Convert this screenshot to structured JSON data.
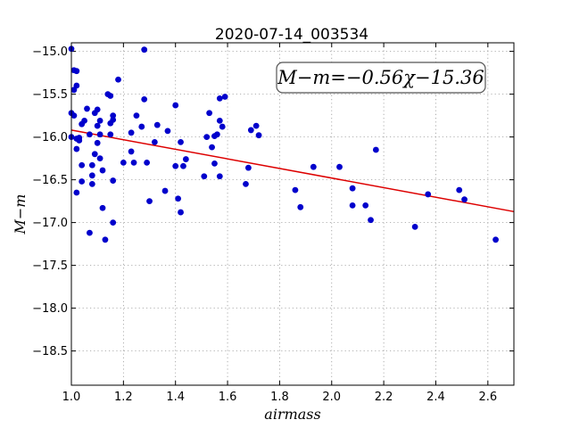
{
  "chart_data": {
    "type": "scatter",
    "title": "2020-07-14_003534",
    "xlabel": "airmass",
    "ylabel": "M−m",
    "xlim": [
      1.0,
      2.7
    ],
    "ylim": [
      -18.9,
      -14.9
    ],
    "y_inverted": true,
    "grid": true,
    "xticks": [
      1.0,
      1.2,
      1.4,
      1.6,
      1.8,
      2.0,
      2.2,
      2.4,
      2.6
    ],
    "xtick_labels": [
      "1.0",
      "1.2",
      "1.4",
      "1.6",
      "1.8",
      "2.0",
      "2.2",
      "2.4",
      "2.6"
    ],
    "yticks": [
      -15.0,
      -15.5,
      -16.0,
      -16.5,
      -17.0,
      -17.5,
      -18.0,
      -18.5
    ],
    "ytick_labels": [
      "−15.0",
      "−15.5",
      "−16.0",
      "−16.5",
      "−17.0",
      "−17.5",
      "−18.0",
      "−18.5"
    ],
    "point_color": "#0000cc",
    "fit_color": "#dd0000",
    "annotation": "M−m=−0.56χ−15.36",
    "fit": {
      "slope": -0.56,
      "intercept": -15.36
    },
    "points": [
      [
        1.0,
        -14.97
      ],
      [
        1.01,
        -15.22
      ],
      [
        1.02,
        -15.23
      ],
      [
        1.02,
        -15.4
      ],
      [
        1.01,
        -15.45
      ],
      [
        1.0,
        -15.72
      ],
      [
        1.01,
        -15.75
      ],
      [
        1.0,
        -16.0
      ],
      [
        1.02,
        -16.02
      ],
      [
        1.03,
        -16.01
      ],
      [
        1.03,
        -16.04
      ],
      [
        1.02,
        -16.14
      ],
      [
        1.04,
        -16.33
      ],
      [
        1.04,
        -16.52
      ],
      [
        1.02,
        -16.65
      ],
      [
        1.04,
        -15.85
      ],
      [
        1.05,
        -15.81
      ],
      [
        1.06,
        -15.67
      ],
      [
        1.07,
        -15.97
      ],
      [
        1.09,
        -15.72
      ],
      [
        1.1,
        -15.68
      ],
      [
        1.11,
        -15.81
      ],
      [
        1.1,
        -15.87
      ],
      [
        1.11,
        -15.97
      ],
      [
        1.1,
        -16.07
      ],
      [
        1.09,
        -16.2
      ],
      [
        1.11,
        -16.25
      ],
      [
        1.08,
        -16.33
      ],
      [
        1.12,
        -16.39
      ],
      [
        1.08,
        -16.45
      ],
      [
        1.08,
        -16.55
      ],
      [
        1.07,
        -17.12
      ],
      [
        1.12,
        -16.83
      ],
      [
        1.13,
        -17.2
      ],
      [
        1.14,
        -15.5
      ],
      [
        1.15,
        -15.52
      ],
      [
        1.15,
        -15.97
      ],
      [
        1.16,
        -15.75
      ],
      [
        1.16,
        -15.8
      ],
      [
        1.15,
        -15.84
      ],
      [
        1.16,
        -16.51
      ],
      [
        1.16,
        -17.0
      ],
      [
        1.18,
        -15.33
      ],
      [
        1.2,
        -16.3
      ],
      [
        1.23,
        -16.17
      ],
      [
        1.23,
        -15.95
      ],
      [
        1.25,
        -15.75
      ],
      [
        1.24,
        -16.3
      ],
      [
        1.28,
        -14.98
      ],
      [
        1.28,
        -15.56
      ],
      [
        1.27,
        -15.88
      ],
      [
        1.29,
        -16.3
      ],
      [
        1.3,
        -16.75
      ],
      [
        1.32,
        -16.06
      ],
      [
        1.33,
        -15.86
      ],
      [
        1.37,
        -15.93
      ],
      [
        1.36,
        -16.63
      ],
      [
        1.4,
        -15.63
      ],
      [
        1.4,
        -16.34
      ],
      [
        1.42,
        -16.06
      ],
      [
        1.43,
        -16.34
      ],
      [
        1.41,
        -16.72
      ],
      [
        1.42,
        -16.88
      ],
      [
        1.44,
        -16.26
      ],
      [
        1.51,
        -16.46
      ],
      [
        1.53,
        -15.72
      ],
      [
        1.52,
        -16.0
      ],
      [
        1.54,
        -16.12
      ],
      [
        1.55,
        -15.99
      ],
      [
        1.55,
        -16.31
      ],
      [
        1.56,
        -15.97
      ],
      [
        1.57,
        -15.55
      ],
      [
        1.57,
        -15.81
      ],
      [
        1.58,
        -15.88
      ],
      [
        1.59,
        -15.53
      ],
      [
        1.57,
        -16.46
      ],
      [
        1.69,
        -15.92
      ],
      [
        1.71,
        -15.87
      ],
      [
        1.72,
        -15.98
      ],
      [
        1.68,
        -16.36
      ],
      [
        1.67,
        -16.55
      ],
      [
        1.86,
        -16.62
      ],
      [
        1.88,
        -16.82
      ],
      [
        1.93,
        -16.35
      ],
      [
        2.03,
        -16.35
      ],
      [
        2.08,
        -16.6
      ],
      [
        2.08,
        -16.8
      ],
      [
        2.13,
        -16.8
      ],
      [
        2.15,
        -16.97
      ],
      [
        2.17,
        -16.15
      ],
      [
        2.32,
        -17.05
      ],
      [
        2.37,
        -16.67
      ],
      [
        2.49,
        -16.62
      ],
      [
        2.51,
        -16.73
      ],
      [
        2.63,
        -17.2
      ]
    ]
  }
}
